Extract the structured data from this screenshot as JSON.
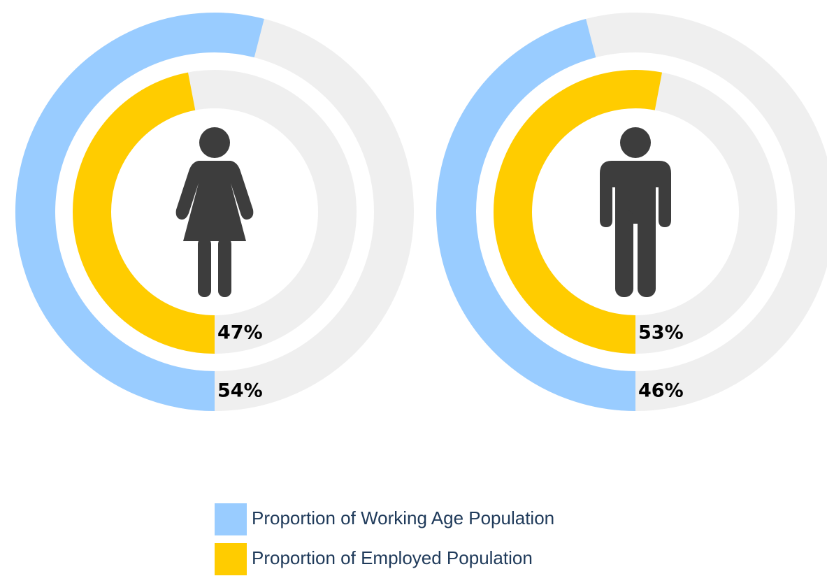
{
  "chart_data": {
    "type": "radial",
    "track_color": "#efefef",
    "series": [
      {
        "name": "Proportion of Working Age Population",
        "color": "#99ccff",
        "values": [
          54,
          46
        ],
        "value_labels": [
          "54%",
          "46%"
        ]
      },
      {
        "name": "Proportion of Employed Population",
        "color": "#ffcc00",
        "values": [
          47,
          53
        ],
        "value_labels": [
          "47%",
          "53%"
        ]
      }
    ]
  }
}
